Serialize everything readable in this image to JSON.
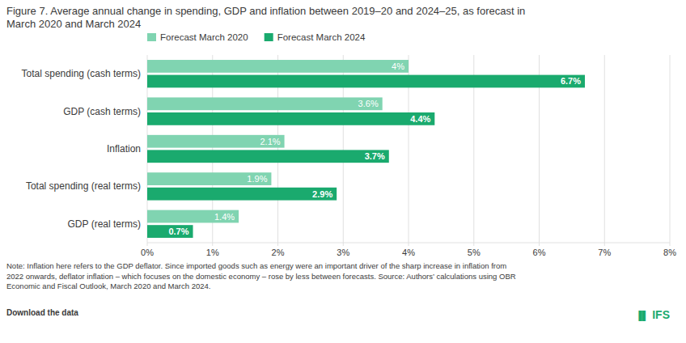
{
  "chart_data": {
    "type": "bar",
    "orientation": "horizontal",
    "title": "Figure 7. Average annual change in spending, GDP and inflation between 2019–20 and 2024–25, as forecast in\nMarch 2020 and March 2024",
    "categories": [
      "Total spending (cash terms)",
      "GDP (cash terms)",
      "Inflation",
      "Total spending (real terms)",
      "GDP (real terms)"
    ],
    "series": [
      {
        "name": "Forecast March 2020",
        "color": "#80d4b1",
        "values": [
          4.0,
          3.6,
          2.1,
          1.9,
          1.4
        ],
        "value_labels": [
          "4%",
          "3.6%",
          "2.1%",
          "1.9%",
          "1.4%"
        ]
      },
      {
        "name": "Forecast March 2024",
        "color": "#1aaa6e",
        "values": [
          6.7,
          4.4,
          3.7,
          2.9,
          0.7
        ],
        "value_labels": [
          "6.7%",
          "4.4%",
          "3.7%",
          "2.9%",
          "0.7%"
        ]
      }
    ],
    "xlim": [
      0,
      8
    ],
    "xticks": [
      {
        "value": 0,
        "label": "0%"
      },
      {
        "value": 1,
        "label": "1%"
      },
      {
        "value": 2,
        "label": "2%"
      },
      {
        "value": 3,
        "label": "3%"
      },
      {
        "value": 4,
        "label": "4%"
      },
      {
        "value": 5,
        "label": "5%"
      },
      {
        "value": 6,
        "label": "6%"
      },
      {
        "value": 7,
        "label": "7%"
      },
      {
        "value": 8,
        "label": "8%"
      }
    ],
    "grid": true,
    "legend": "top",
    "data_labels": true,
    "annotations": [
      "Note: Inflation here refers to the GDP deflator. Since imported goods such as energy were an important driver of the sharp increase in inflation from\n2022 onwards, deflator inflation – which focuses on the domestic economy – rose by less between forecasts. Source: Authors’ calculations using OBR\nEconomic and Fiscal Outlook, March 2020 and March 2024.",
      "Download the data",
      "▐▌",
      "IFS"
    ]
  }
}
